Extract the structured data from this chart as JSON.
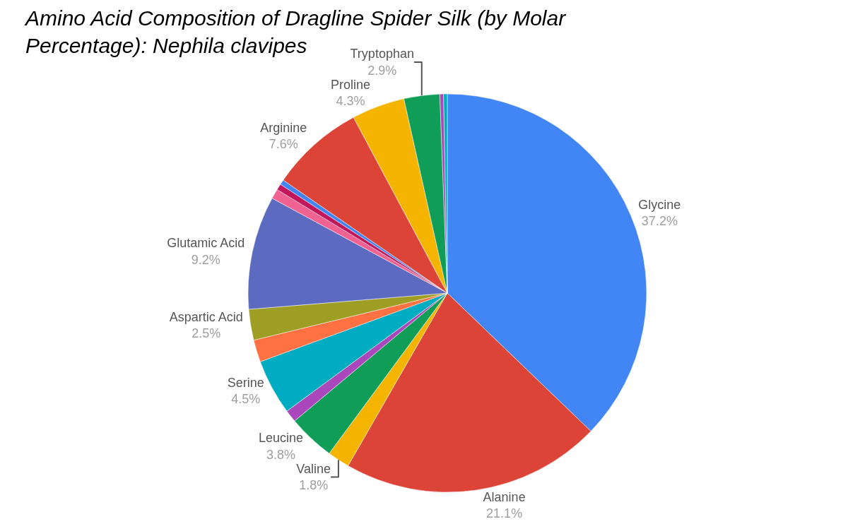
{
  "chart_data": {
    "type": "pie",
    "title": "Amino Acid Composition of Dragline Spider Silk (by Molar Percentage): Nephila clavipes",
    "categories": [
      "Glycine",
      "Alanine",
      "Valine",
      "Leucine",
      null,
      "Serine",
      null,
      "Aspartic Acid",
      "Glutamic Acid",
      null,
      null,
      null,
      "Arginine",
      "Proline",
      "Tryptophan",
      null,
      null
    ],
    "values": [
      37.2,
      21.1,
      1.8,
      3.8,
      1.0,
      4.5,
      1.8,
      2.5,
      9.2,
      0.8,
      0.5,
      0.4,
      7.6,
      4.3,
      2.9,
      0.3,
      0.3
    ],
    "value_labels": [
      "37.2%",
      "21.1%",
      "1.8%",
      "3.8%",
      null,
      "4.5%",
      null,
      "2.5%",
      "9.2%",
      null,
      null,
      null,
      "7.6%",
      "4.3%",
      "2.9%",
      null,
      null
    ],
    "colors": [
      "#4285f4",
      "#db4437",
      "#f4b400",
      "#0f9d58",
      "#ab47bc",
      "#00acc1",
      "#ff7043",
      "#9e9d24",
      "#5c6bc0",
      "#f06292",
      "#c2185b",
      "#4285f4",
      "#db4437",
      "#f4b400",
      "#0f9d58",
      "#ab47bc",
      "#00acc1"
    ],
    "legend": false
  }
}
